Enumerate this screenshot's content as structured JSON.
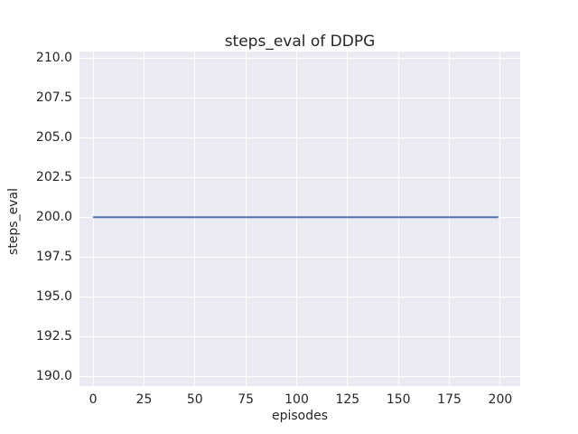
{
  "chart_data": {
    "type": "line",
    "title": "steps_eval of DDPG",
    "xlabel": "episodes",
    "ylabel": "steps_eval",
    "x_ticks": [
      0,
      25,
      50,
      75,
      100,
      125,
      150,
      175,
      200
    ],
    "x_tick_labels": [
      "0",
      "25",
      "50",
      "75",
      "100",
      "125",
      "150",
      "175",
      "200"
    ],
    "y_ticks": [
      190.0,
      192.5,
      195.0,
      197.5,
      200.0,
      202.5,
      205.0,
      207.5,
      210.0
    ],
    "y_tick_labels": [
      "190.0",
      "192.5",
      "195.0",
      "197.5",
      "200.0",
      "202.5",
      "205.0",
      "207.5",
      "210.0"
    ],
    "xlim": [
      -6.7,
      209.8
    ],
    "ylim": [
      189.4,
      210.4
    ],
    "grid": true,
    "legend_position": "none",
    "series": [
      {
        "name": "steps_eval",
        "x": [
          0,
          199
        ],
        "y": [
          200,
          200
        ],
        "color": "#4c72b0",
        "shape": "constant horizontal line at 200 across episodes 0-199"
      }
    ],
    "colors": {
      "figure_bg": "#ffffff",
      "plot_bg": "#eaeaf2",
      "grid": "#ffffff",
      "text": "#262626",
      "line": "#4c72b0"
    }
  }
}
